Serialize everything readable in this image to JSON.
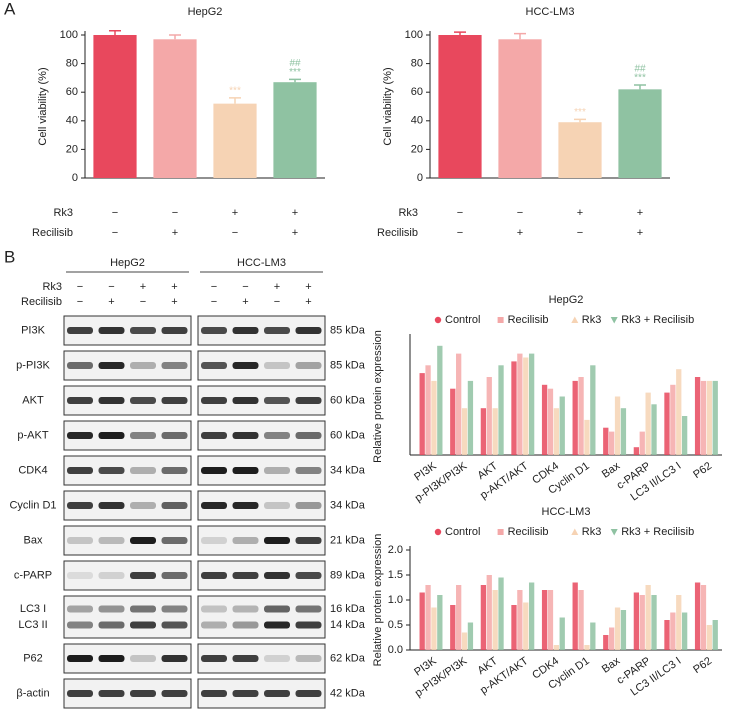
{
  "panel_labels": [
    "A",
    "B"
  ],
  "blot": {
    "cell_lines": [
      "HepG2",
      "HCC-LM3"
    ],
    "treatments": [
      {
        "name": "Rk3",
        "signs": [
          "−",
          "−",
          "+",
          "+"
        ]
      },
      {
        "name": "Recilisib",
        "signs": [
          "−",
          "+",
          "−",
          "+"
        ]
      }
    ],
    "rows": [
      {
        "names": [
          "PI3K"
        ],
        "kda": [
          "85 kDa"
        ]
      },
      {
        "names": [
          "p-PI3K"
        ],
        "kda": [
          "85 kDa"
        ]
      },
      {
        "names": [
          "AKT"
        ],
        "kda": [
          "60 kDa"
        ]
      },
      {
        "names": [
          "p-AKT"
        ],
        "kda": [
          "60 kDa"
        ]
      },
      {
        "names": [
          "CDK4"
        ],
        "kda": [
          "34 kDa"
        ]
      },
      {
        "names": [
          "Cyclin D1"
        ],
        "kda": [
          "34 kDa"
        ]
      },
      {
        "names": [
          "Bax"
        ],
        "kda": [
          "21 kDa"
        ]
      },
      {
        "names": [
          "c-PARP"
        ],
        "kda": [
          "89 kDa"
        ]
      },
      {
        "names": [
          "LC3 I",
          "LC3 II"
        ],
        "kda": [
          "16 kDa",
          "14 kDa"
        ]
      },
      {
        "names": [
          "P62"
        ],
        "kda": [
          "62 kDa"
        ]
      },
      {
        "names": [
          "β-actin"
        ],
        "kda": [
          "42 kDa"
        ]
      }
    ]
  },
  "chart_data": [
    {
      "type": "bar",
      "title": "HepG2",
      "ylabel": "Cell viability (%)",
      "values": [
        100,
        97,
        52,
        67
      ],
      "errors": [
        3,
        3,
        4,
        2
      ],
      "colors": [
        "#e8485d",
        "#f4a8a8",
        "#f6d3b4",
        "#8fc2a2"
      ],
      "sig_vs_control": [
        null,
        null,
        "***",
        "***"
      ],
      "sig_vs_rk3": [
        null,
        null,
        null,
        "##"
      ],
      "ylim": [
        0,
        100
      ],
      "yticks": [
        0,
        20,
        40,
        60,
        80,
        100
      ],
      "treatments": [
        {
          "name": "Rk3",
          "signs": [
            "−",
            "−",
            "+",
            "+"
          ]
        },
        {
          "name": "Recilisib",
          "signs": [
            "−",
            "+",
            "−",
            "+"
          ]
        }
      ]
    },
    {
      "type": "bar",
      "title": "HCC-LM3",
      "ylabel": "Cell viability (%)",
      "values": [
        100,
        97,
        39,
        62
      ],
      "errors": [
        2,
        4,
        2,
        3
      ],
      "colors": [
        "#e8485d",
        "#f4a8a8",
        "#f6d3b4",
        "#8fc2a2"
      ],
      "sig_vs_control": [
        null,
        null,
        "***",
        "***"
      ],
      "sig_vs_rk3": [
        null,
        null,
        null,
        "##"
      ],
      "ylim": [
        0,
        100
      ],
      "yticks": [
        0,
        20,
        40,
        60,
        80,
        100
      ],
      "treatments": [
        {
          "name": "Rk3",
          "signs": [
            "−",
            "−",
            "+",
            "+"
          ]
        },
        {
          "name": "Recilisib",
          "signs": [
            "−",
            "+",
            "−",
            "+"
          ]
        }
      ]
    },
    {
      "type": "bar",
      "title": "HepG2",
      "ylabel": "Relative protein expression",
      "categories": [
        "PI3K",
        "p-PI3K/PI3K",
        "AKT",
        "p-AKT/AKT",
        "CDK4",
        "Cyclin D1",
        "Bax",
        "c-PARP",
        "LC3 II/LC3 I",
        "P62"
      ],
      "series": [
        {
          "name": "Control",
          "color": "#e8485d",
          "values": [
            1.05,
            0.85,
            0.6,
            1.2,
            0.9,
            0.95,
            0.35,
            0.1,
            0.8,
            1.0
          ]
        },
        {
          "name": "Recilisib",
          "color": "#f4a8a8",
          "values": [
            1.15,
            1.3,
            1.0,
            1.3,
            0.85,
            1.0,
            0.3,
            0.3,
            0.9,
            0.95
          ]
        },
        {
          "name": "Rk3",
          "color": "#f6d3b4",
          "values": [
            0.95,
            0.6,
            0.6,
            1.25,
            0.6,
            0.45,
            0.75,
            0.8,
            1.1,
            0.95
          ]
        },
        {
          "name": "Rk3 + Recilisib",
          "color": "#8fc2a2",
          "values": [
            1.4,
            0.95,
            1.15,
            1.3,
            0.75,
            1.15,
            0.6,
            0.65,
            0.5,
            0.95
          ]
        }
      ],
      "ylim": [
        0,
        1.5
      ]
    },
    {
      "type": "bar",
      "title": "HCC-LM3",
      "ylabel": "Relative protein expression",
      "categories": [
        "PI3K",
        "p-PI3K/PI3K",
        "AKT",
        "p-AKT/AKT",
        "CDK4",
        "Cyclin D1",
        "Bax",
        "c-PARP",
        "LC3 II/LC3 I",
        "P62"
      ],
      "series": [
        {
          "name": "Control",
          "color": "#e8485d",
          "values": [
            1.15,
            0.9,
            1.3,
            0.9,
            1.2,
            1.35,
            0.3,
            1.15,
            0.6,
            1.35
          ]
        },
        {
          "name": "Recilisib",
          "color": "#f4a8a8",
          "values": [
            1.3,
            1.3,
            1.5,
            1.2,
            1.2,
            1.2,
            0.45,
            1.1,
            0.75,
            1.3
          ]
        },
        {
          "name": "Rk3",
          "color": "#f6d3b4",
          "values": [
            0.85,
            0.35,
            1.2,
            0.95,
            0.1,
            0.1,
            0.85,
            1.3,
            1.1,
            0.5
          ]
        },
        {
          "name": "Rk3 + Recilisib",
          "color": "#8fc2a2",
          "values": [
            1.1,
            0.55,
            1.45,
            1.35,
            0.65,
            0.55,
            0.8,
            1.1,
            0.75,
            0.6
          ]
        }
      ],
      "ylim": [
        0,
        2
      ],
      "yticks": [
        {
          "value": 0,
          "label": "0.0"
        },
        0.5,
        {
          "value": 1,
          "label": "1.0"
        },
        1.5,
        {
          "value": 2,
          "label": "2.0"
        }
      ]
    }
  ]
}
